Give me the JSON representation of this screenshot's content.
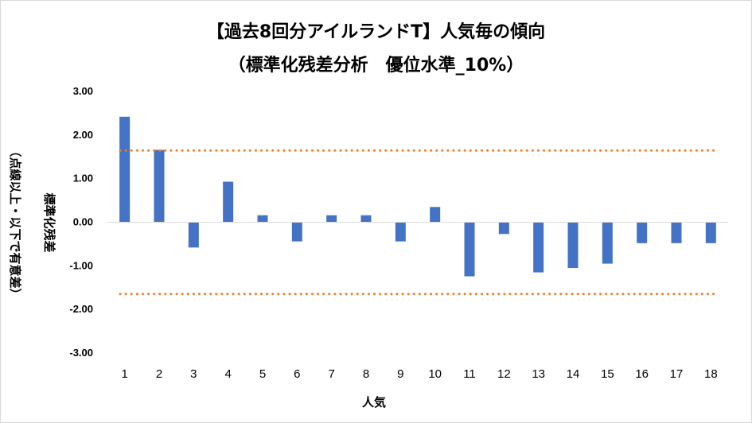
{
  "chart_data": {
    "type": "bar",
    "title": "【過去8回分アイルランドT】人気毎の傾向",
    "subtitle": "（標準化残差分析　優位水準_10%）",
    "xlabel": "人気",
    "ylabel": "標準化残差",
    "ylabel_note": "（点線以上・以下で有意差）",
    "categories": [
      "1",
      "2",
      "3",
      "4",
      "5",
      "6",
      "7",
      "8",
      "9",
      "10",
      "11",
      "12",
      "13",
      "14",
      "15",
      "16",
      "17",
      "18"
    ],
    "values": [
      2.42,
      1.66,
      -0.58,
      0.93,
      0.16,
      -0.44,
      0.16,
      0.16,
      -0.44,
      0.35,
      -1.24,
      -0.27,
      -1.15,
      -1.05,
      -0.95,
      -0.48,
      -0.48,
      -0.48
    ],
    "ylim": [
      -3.0,
      3.0
    ],
    "yticks": [
      "3.00",
      "2.00",
      "1.00",
      "0.00",
      "-1.00",
      "-2.00",
      "-3.00"
    ],
    "threshold_upper": 1.645,
    "threshold_lower": -1.645,
    "legend": "none",
    "colors": {
      "bar": "#4472c4",
      "threshold": "#ed7d31"
    }
  }
}
